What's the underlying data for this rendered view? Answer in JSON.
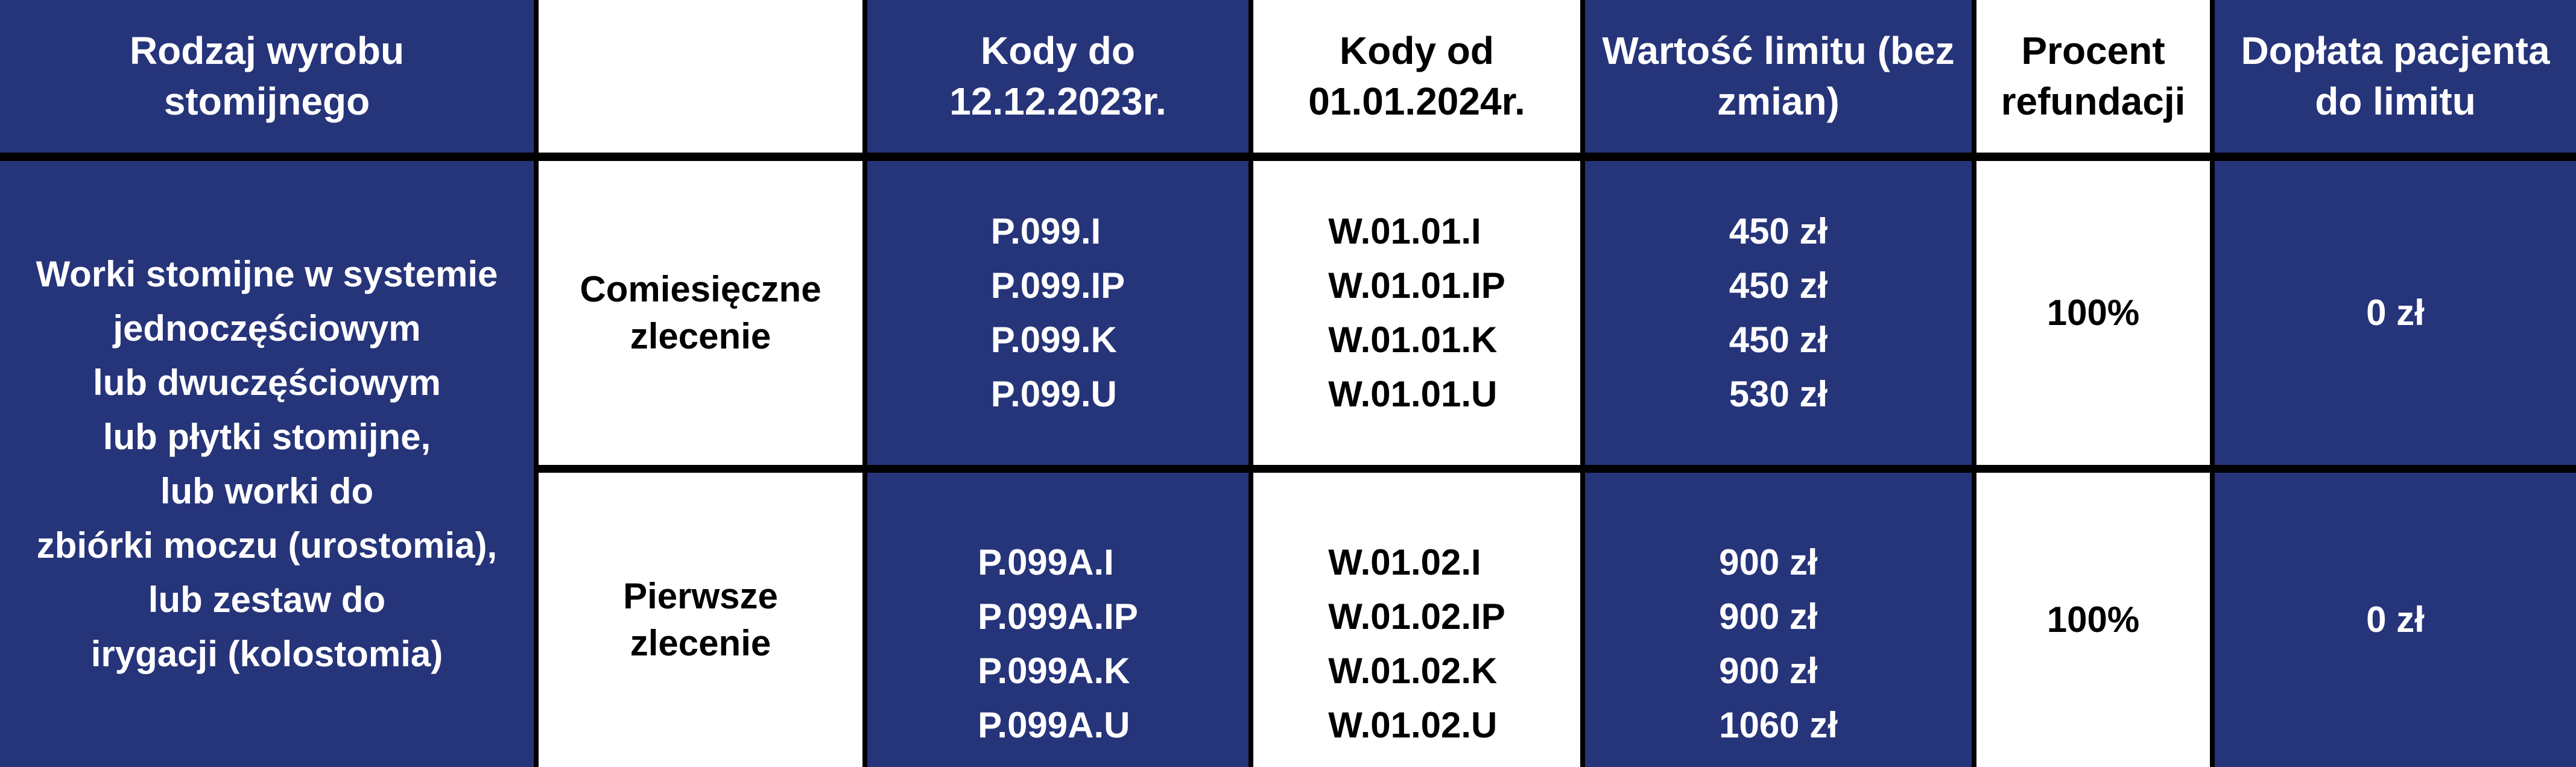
{
  "colors": {
    "navy": "#26347a",
    "white": "#ffffff",
    "border": "#000000"
  },
  "header": {
    "product_type": "Rodzaj wyrobu stomijnego",
    "order_type": "",
    "codes_old": "Kody do 12.12.2023r.",
    "codes_new": "Kody od 01.01.2024r.",
    "limit_value": "Wartość limitu (bez zmian)",
    "refund_percent": "Procent refundacji",
    "patient_copay": "Dopłata pacjenta do limitu"
  },
  "product_description": "Worki stomijne w systemie jednoczęściowym lub dwuczęściowym lub płytki stomijne, lub worki do zbiórki moczu (urostomia), lub zestaw do irygacji (kolostomia)",
  "product_lines": [
    "Worki stomijne w systemie",
    "jednoczęściowym",
    "lub dwuczęściowym",
    "lub płytki stomijne,",
    "lub worki do",
    "zbiórki moczu (urostomia),",
    "lub zestaw do",
    "irygacji (kolostomia)"
  ],
  "rows": [
    {
      "order_type": "Comiesięczne zlecenie",
      "codes_old": [
        "P.099.I",
        "P.099.IP",
        "P.099.K",
        "P.099.U"
      ],
      "codes_new": [
        "W.01.01.I",
        "W.01.01.IP",
        "W.01.01.K",
        "W.01.01.U"
      ],
      "limits": [
        "450 zł",
        "450 zł",
        "450 zł",
        "530 zł"
      ],
      "refund_percent": "100%",
      "patient_copay": "0 zł"
    },
    {
      "order_type": "Pierwsze zlecenie",
      "codes_old": [
        "P.099A.I",
        "P.099A.IP",
        "P.099A.K",
        "P.099A.U"
      ],
      "codes_new": [
        "W.01.02.I",
        "W.01.02.IP",
        "W.01.02.K",
        "W.01.02.U"
      ],
      "limits": [
        "900 zł",
        "900 zł",
        "900 zł",
        "1060 zł"
      ],
      "refund_percent": "100%",
      "patient_copay": "0 zł"
    }
  ]
}
